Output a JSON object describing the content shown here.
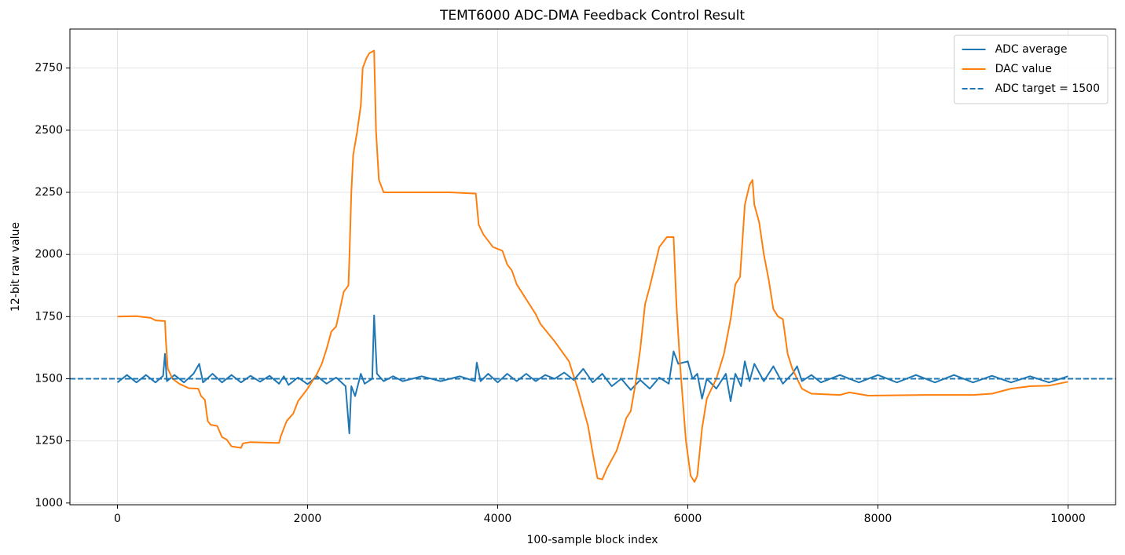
{
  "chart_data": {
    "type": "line",
    "title": "TEMT6000 ADC-DMA Feedback Control Result",
    "xlabel": "100-sample block index",
    "ylabel": "12-bit raw value",
    "xlim": [
      -500,
      10500
    ],
    "xticks": [
      0,
      2000,
      4000,
      6000,
      8000,
      10000
    ],
    "ylim": [
      993,
      2907
    ],
    "yticks": [
      1000,
      1250,
      1500,
      1750,
      2000,
      2250,
      2500,
      2750
    ],
    "grid": true,
    "legend": "upper right",
    "series": [
      {
        "name": "ADC average",
        "color": "#1f77b4",
        "x": [
          0,
          100,
          200,
          300,
          400,
          480,
          500,
          520,
          600,
          700,
          800,
          860,
          900,
          1000,
          1100,
          1200,
          1300,
          1400,
          1500,
          1600,
          1700,
          1750,
          1800,
          1900,
          2000,
          2100,
          2200,
          2300,
          2400,
          2440,
          2460,
          2500,
          2560,
          2600,
          2680,
          2700,
          2730,
          2800,
          2900,
          3000,
          3200,
          3400,
          3600,
          3760,
          3780,
          3820,
          3900,
          4000,
          4100,
          4200,
          4300,
          4400,
          4500,
          4600,
          4700,
          4800,
          4900,
          5000,
          5100,
          5200,
          5300,
          5400,
          5500,
          5600,
          5700,
          5800,
          5850,
          5900,
          6000,
          6050,
          6100,
          6150,
          6200,
          6300,
          6400,
          6450,
          6500,
          6560,
          6600,
          6650,
          6700,
          6800,
          6900,
          7000,
          7100,
          7150,
          7200,
          7300,
          7400,
          7600,
          7800,
          8000,
          8200,
          8400,
          8600,
          8800,
          9000,
          9200,
          9400,
          9600,
          9800,
          10000
        ],
        "values": [
          1485,
          1515,
          1485,
          1515,
          1485,
          1512,
          1600,
          1490,
          1515,
          1485,
          1520,
          1560,
          1485,
          1520,
          1485,
          1515,
          1485,
          1512,
          1488,
          1512,
          1480,
          1510,
          1475,
          1505,
          1478,
          1510,
          1480,
          1505,
          1470,
          1280,
          1470,
          1430,
          1520,
          1480,
          1500,
          1755,
          1520,
          1490,
          1510,
          1490,
          1510,
          1490,
          1510,
          1490,
          1565,
          1490,
          1520,
          1485,
          1520,
          1490,
          1520,
          1490,
          1515,
          1500,
          1525,
          1495,
          1540,
          1485,
          1520,
          1470,
          1500,
          1455,
          1495,
          1460,
          1505,
          1480,
          1610,
          1560,
          1570,
          1500,
          1520,
          1420,
          1500,
          1460,
          1520,
          1410,
          1520,
          1470,
          1570,
          1490,
          1560,
          1490,
          1550,
          1480,
          1520,
          1550,
          1490,
          1515,
          1485,
          1515,
          1485,
          1515,
          1485,
          1515,
          1485,
          1515,
          1485,
          1512,
          1485,
          1510,
          1485,
          1510
        ]
      },
      {
        "name": "DAC value",
        "color": "#ff7f0e",
        "x": [
          0,
          200,
          350,
          400,
          500,
          510,
          530,
          580,
          650,
          750,
          850,
          880,
          920,
          950,
          980,
          1050,
          1100,
          1150,
          1200,
          1300,
          1320,
          1400,
          1700,
          1720,
          1780,
          1850,
          1900,
          2000,
          2050,
          2100,
          2150,
          2200,
          2250,
          2300,
          2330,
          2380,
          2430,
          2440,
          2460,
          2480,
          2520,
          2560,
          2580,
          2620,
          2650,
          2700,
          2720,
          2750,
          2800,
          3000,
          3500,
          3770,
          3800,
          3850,
          3950,
          4050,
          4100,
          4150,
          4200,
          4300,
          4400,
          4450,
          4600,
          4750,
          4850,
          4950,
          5000,
          5050,
          5100,
          5150,
          5250,
          5300,
          5350,
          5400,
          5450,
          5500,
          5550,
          5600,
          5700,
          5780,
          5850,
          5880,
          5920,
          5980,
          6030,
          6070,
          6100,
          6150,
          6200,
          6300,
          6380,
          6450,
          6500,
          6550,
          6600,
          6650,
          6680,
          6700,
          6750,
          6800,
          6850,
          6900,
          6950,
          7000,
          7050,
          7100,
          7150,
          7200,
          7300,
          7600,
          7700,
          7900,
          8500,
          9000,
          9200,
          9400,
          9600,
          9800,
          10000
        ],
        "values": [
          1750,
          1752,
          1745,
          1735,
          1732,
          1650,
          1540,
          1500,
          1480,
          1462,
          1460,
          1430,
          1415,
          1330,
          1315,
          1310,
          1265,
          1255,
          1228,
          1222,
          1240,
          1245,
          1242,
          1270,
          1330,
          1360,
          1410,
          1460,
          1490,
          1520,
          1560,
          1620,
          1690,
          1710,
          1760,
          1850,
          1875,
          1980,
          2250,
          2400,
          2490,
          2600,
          2750,
          2790,
          2810,
          2820,
          2500,
          2300,
          2250,
          2250,
          2250,
          2245,
          2120,
          2080,
          2030,
          2015,
          1960,
          1935,
          1880,
          1820,
          1760,
          1720,
          1650,
          1570,
          1450,
          1310,
          1200,
          1100,
          1095,
          1140,
          1210,
          1270,
          1340,
          1370,
          1480,
          1620,
          1800,
          1870,
          2030,
          2070,
          2070,
          1800,
          1550,
          1250,
          1110,
          1085,
          1110,
          1300,
          1420,
          1500,
          1600,
          1740,
          1880,
          1910,
          2200,
          2280,
          2300,
          2200,
          2130,
          2000,
          1900,
          1780,
          1750,
          1740,
          1600,
          1540,
          1500,
          1460,
          1440,
          1435,
          1445,
          1432,
          1435,
          1435,
          1440,
          1460,
          1470,
          1472,
          1488
        ]
      }
    ],
    "hlines": [
      {
        "name": "ADC target = 1500",
        "value": 1500,
        "color": "#1f77b4",
        "style": "dashed"
      }
    ]
  }
}
